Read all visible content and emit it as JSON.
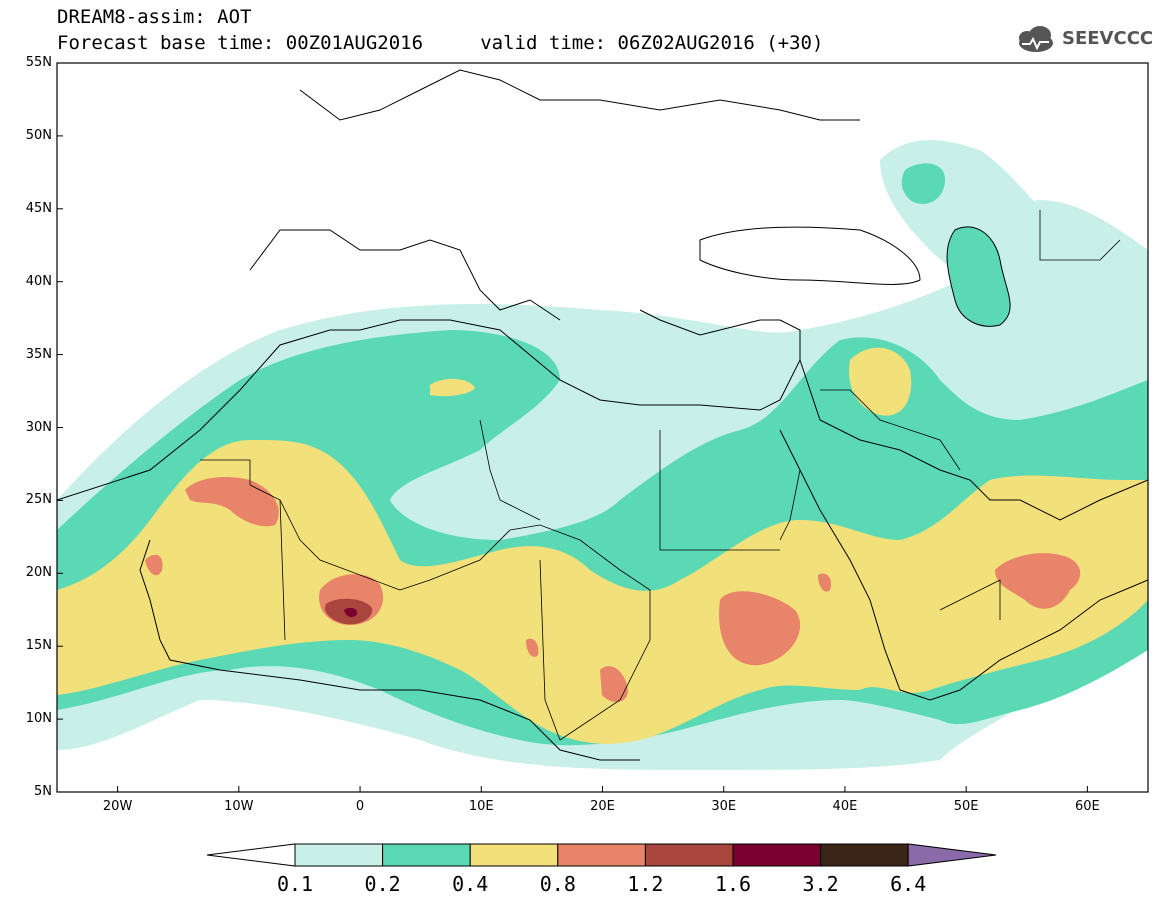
{
  "header": {
    "line1": "DREAM8-assim: AOT",
    "line2": "Forecast base time: 00Z01AUG2016     valid time: 06Z02AUG2016 (+30)",
    "logo_text": "SEEVCCC"
  },
  "map": {
    "lon_range": [
      -25,
      65
    ],
    "lat_range": [
      5,
      55
    ],
    "lat_ticks": [
      "5N",
      "10N",
      "15N",
      "20N",
      "25N",
      "30N",
      "35N",
      "40N",
      "45N",
      "50N",
      "55N"
    ],
    "lon_ticks": [
      "20W",
      "10W",
      "0",
      "10E",
      "20E",
      "30E",
      "40E",
      "50E",
      "60E"
    ],
    "colors": {
      "c01_02": "#c8f0e8",
      "c02_04": "#5ad9b4",
      "c04_08": "#f2e07a",
      "c08_12": "#e8846a",
      "c12_16": "#a8453c",
      "c16_32": "#7a0030",
      "c32_64": "#3b2418",
      "c64": "#8a6aa8",
      "frame": "#000000"
    }
  },
  "colorbar": {
    "labels": [
      "0.1",
      "0.2",
      "0.4",
      "0.8",
      "1.2",
      "1.6",
      "3.2",
      "6.4"
    ],
    "colors": [
      "#ffffff",
      "#c8f0e8",
      "#5ad9b4",
      "#f2e07a",
      "#e8846a",
      "#a8453c",
      "#7a0030",
      "#3b2418",
      "#8a6aa8"
    ]
  }
}
